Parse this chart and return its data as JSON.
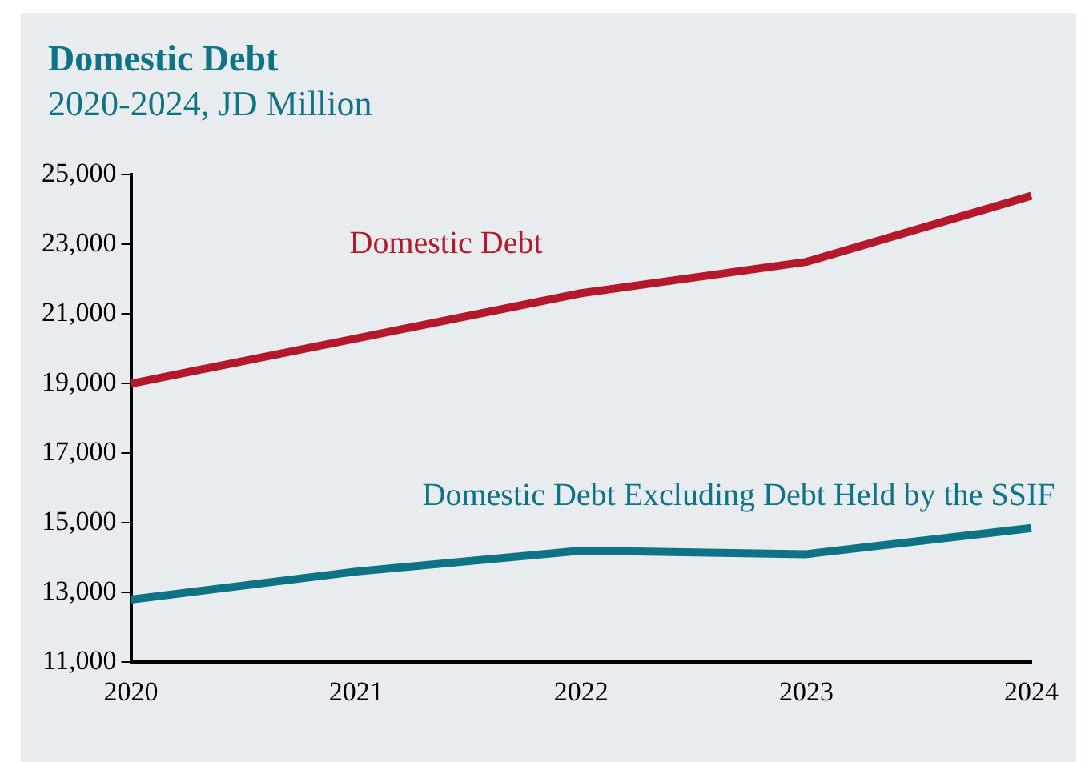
{
  "chart_data": {
    "type": "line",
    "title": "Domestic Debt",
    "subtitle": "2020-2024, JD Million",
    "categories": [
      "2020",
      "2021",
      "2022",
      "2023",
      "2024"
    ],
    "series": [
      {
        "name": "Domestic Debt",
        "color": "#b5182b",
        "values": [
          19000,
          20300,
          21600,
          22500,
          24400
        ]
      },
      {
        "name": "Domestic Debt Excluding Debt Held by the SSIF",
        "color": "#0e7386",
        "values": [
          12800,
          13600,
          14200,
          14100,
          14850
        ]
      }
    ],
    "ylim": [
      11000,
      25000
    ],
    "yticks": [
      {
        "value": 11000,
        "label": "11,000"
      },
      {
        "value": 13000,
        "label": "13,000"
      },
      {
        "value": 15000,
        "label": "15,000"
      },
      {
        "value": 17000,
        "label": "17,000"
      },
      {
        "value": 19000,
        "label": "19,000"
      },
      {
        "value": 21000,
        "label": "21,000"
      },
      {
        "value": 23000,
        "label": "23,000"
      },
      {
        "value": 25000,
        "label": "25,000"
      }
    ],
    "grid": false,
    "legend": false,
    "marker": "none",
    "line_style": "solid"
  }
}
